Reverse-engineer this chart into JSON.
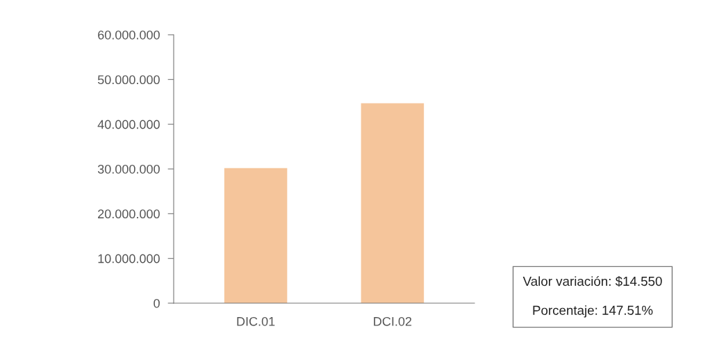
{
  "chart_data": {
    "type": "bar",
    "categories": [
      "DIC.01",
      "DCI.02"
    ],
    "values": [
      30200000,
      44700000
    ],
    "color": "#f5c59b",
    "ylim": [
      0,
      60000000
    ],
    "yticks": [
      {
        "value": 0,
        "label": "0"
      },
      {
        "value": 10000000,
        "label": "10.000.000"
      },
      {
        "value": 20000000,
        "label": "20.000.000"
      },
      {
        "value": 30000000,
        "label": "30.000.000"
      },
      {
        "value": 40000000,
        "label": "40.000.000"
      },
      {
        "value": 50000000,
        "label": "50.000.000"
      },
      {
        "value": 60000000,
        "label": "60.000.000"
      }
    ],
    "grid": false,
    "annotations": [
      "Valor variación: $14.550\n\nPorcentaje: 147.51%"
    ]
  }
}
